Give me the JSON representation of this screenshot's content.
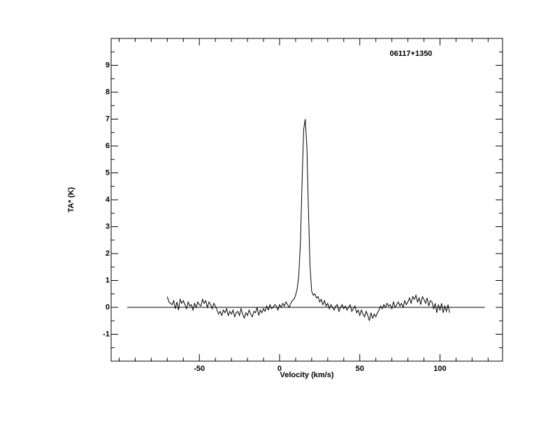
{
  "chart_data": {
    "type": "line",
    "title": "06117+1350",
    "xlabel": "Velocity (km/s)",
    "ylabel": "TA* (K)",
    "x": [
      -70,
      -69,
      -68,
      -67,
      -66,
      -65,
      -64,
      -63,
      -62,
      -61,
      -60,
      -59,
      -58,
      -57,
      -56,
      -55,
      -54,
      -53,
      -52,
      -51,
      -50,
      -49,
      -48,
      -47,
      -46,
      -45,
      -44,
      -43,
      -42,
      -41,
      -40,
      -39,
      -38,
      -37,
      -36,
      -35,
      -34,
      -33,
      -32,
      -31,
      -30,
      -29,
      -28,
      -27,
      -26,
      -25,
      -24,
      -23,
      -22,
      -21,
      -20,
      -19,
      -18,
      -17,
      -16,
      -15,
      -14,
      -13,
      -12,
      -11,
      -10,
      -9,
      -8,
      -7,
      -6,
      -5,
      -4,
      -3,
      -2,
      -1,
      0,
      1,
      2,
      3,
      4,
      5,
      6,
      7,
      8,
      9,
      10,
      11,
      12,
      13,
      14,
      15,
      16,
      17,
      18,
      19,
      20,
      21,
      22,
      23,
      24,
      25,
      26,
      27,
      28,
      29,
      30,
      31,
      32,
      33,
      34,
      35,
      36,
      37,
      38,
      39,
      40,
      41,
      42,
      43,
      44,
      45,
      46,
      47,
      48,
      49,
      50,
      51,
      52,
      53,
      54,
      55,
      56,
      57,
      58,
      59,
      60,
      61,
      62,
      63,
      64,
      65,
      66,
      67,
      68,
      69,
      70,
      71,
      72,
      73,
      74,
      75,
      76,
      77,
      78,
      79,
      80,
      81,
      82,
      83,
      84,
      85,
      86,
      87,
      88,
      89,
      90,
      91,
      92,
      93,
      94,
      95,
      96,
      97,
      98,
      99,
      100,
      101,
      102,
      103,
      104,
      105,
      106
    ],
    "values": [
      0.4,
      0.2,
      0.15,
      0.1,
      0.25,
      -0.05,
      0.2,
      -0.1,
      0.3,
      0.15,
      0.25,
      0.1,
      -0.05,
      0.2,
      0.05,
      0.1,
      -0.1,
      0.15,
      0.0,
      0.2,
      0.1,
      0.05,
      0.3,
      0.15,
      0.25,
      0.0,
      0.2,
      0.1,
      -0.05,
      0.15,
      0.05,
      -0.1,
      -0.25,
      -0.15,
      -0.3,
      -0.1,
      -0.2,
      -0.05,
      -0.3,
      -0.15,
      -0.25,
      -0.1,
      -0.35,
      -0.2,
      -0.15,
      -0.3,
      -0.05,
      -0.25,
      -0.4,
      -0.2,
      -0.3,
      -0.1,
      -0.25,
      -0.35,
      -0.15,
      -0.2,
      0.0,
      -0.3,
      -0.1,
      -0.2,
      -0.05,
      -0.15,
      0.05,
      -0.1,
      0.1,
      -0.05,
      0.0,
      0.1,
      0.05,
      -0.1,
      0.1,
      0.0,
      0.15,
      0.05,
      0.2,
      0.1,
      0.0,
      0.15,
      0.25,
      0.3,
      0.45,
      0.7,
      1.2,
      2.4,
      4.6,
      6.6,
      7.0,
      6.0,
      3.6,
      1.5,
      0.6,
      0.45,
      0.5,
      0.35,
      0.4,
      0.2,
      0.3,
      0.1,
      0.25,
      0.05,
      0.15,
      -0.05,
      0.1,
      0.0,
      -0.1,
      0.05,
      0.1,
      -0.15,
      0.0,
      0.1,
      -0.05,
      0.05,
      -0.1,
      0.0,
      0.1,
      -0.15,
      -0.05,
      0.05,
      -0.2,
      -0.1,
      -0.3,
      -0.1,
      -0.25,
      -0.35,
      -0.15,
      -0.3,
      -0.5,
      -0.2,
      -0.4,
      -0.25,
      -0.35,
      -0.2,
      -0.1,
      0.05,
      -0.05,
      0.1,
      0.0,
      0.15,
      0.05,
      0.1,
      -0.05,
      0.2,
      0.0,
      0.1,
      0.2,
      0.05,
      0.15,
      0.0,
      0.25,
      0.1,
      0.2,
      0.35,
      0.15,
      0.4,
      0.3,
      0.45,
      0.2,
      0.35,
      0.1,
      0.4,
      0.3,
      0.15,
      0.35,
      0.05,
      0.25,
      0.2,
      -0.05,
      0.15,
      -0.2,
      0.1,
      -0.1,
      0.15,
      -0.2,
      0.05,
      -0.15,
      0.1,
      -0.2
    ],
    "color": "#000000",
    "baseline": {
      "x": [
        -95,
        128
      ],
      "values": [
        0,
        0
      ]
    },
    "xlim": [
      -105,
      139
    ],
    "ylim": [
      -2,
      10
    ],
    "xticks": [
      -50,
      0,
      50,
      100
    ],
    "yticks": [
      -1,
      0,
      1,
      2,
      3,
      4,
      5,
      6,
      7,
      8,
      9
    ],
    "xminorticks": [
      -100,
      -90,
      -80,
      -70,
      -60,
      -40,
      -30,
      -20,
      -10,
      10,
      20,
      30,
      40,
      60,
      70,
      80,
      90,
      110,
      120,
      130
    ],
    "yminorticks": [
      -1.5,
      -0.5,
      0.5,
      1.5,
      2.5,
      3.5,
      4.5,
      5.5,
      6.5,
      7.5,
      8.5,
      9.5
    ]
  }
}
